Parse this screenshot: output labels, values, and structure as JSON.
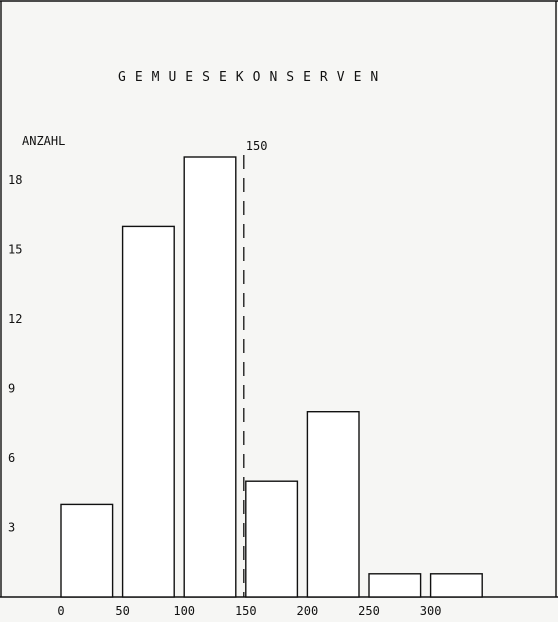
{
  "chart_data": {
    "type": "bar",
    "title": "GEMUESEKONSERVEN",
    "ylabel": "ANZAHL",
    "xlabel": "",
    "categories": [
      "0",
      "50",
      "100",
      "150",
      "200",
      "250",
      "300"
    ],
    "values": [
      4,
      16,
      19,
      5,
      8,
      1,
      1
    ],
    "xlim": [
      0,
      350
    ],
    "ylim": [
      0,
      20
    ],
    "bin_width": 50,
    "x_ticks": [
      0,
      50,
      100,
      150,
      200,
      250,
      300
    ],
    "y_ticks": [
      3,
      6,
      9,
      12,
      15,
      18
    ],
    "reference_line": {
      "x": 150,
      "label": "150",
      "style": "dashed"
    },
    "grid": false,
    "legend": "none",
    "colors": {
      "bar_fill": "#ffffff",
      "bar_stroke": "#111111",
      "background": "#f6f6f4"
    }
  }
}
